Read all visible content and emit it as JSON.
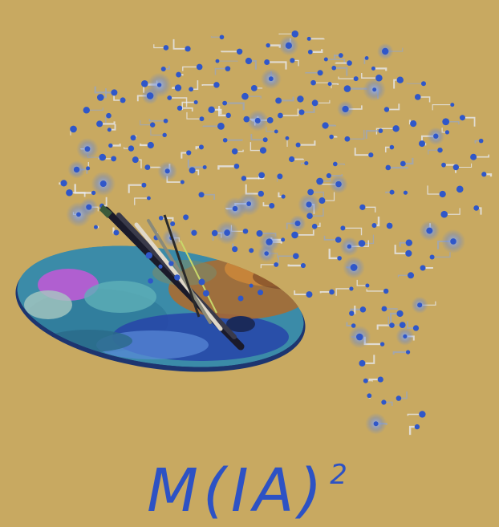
{
  "logo": {
    "name": "M(IA)²",
    "title_main": "M(IA)",
    "title_superscript": "2",
    "colors": {
      "background": "#c8a961",
      "node": "#2f57c9",
      "node_glow": "#8fb0f2",
      "circuit": "#e9eef8",
      "text": "#2d52c4",
      "palette_dark": "#1d3570"
    }
  }
}
